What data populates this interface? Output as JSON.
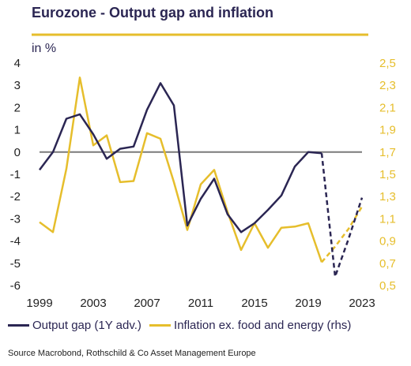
{
  "chart_data": {
    "type": "line",
    "title": "Eurozone - Output gap and inflation",
    "ylabel": "in %",
    "x": [
      1999,
      2000,
      2001,
      2002,
      2003,
      2004,
      2005,
      2006,
      2007,
      2008,
      2009,
      2010,
      2011,
      2012,
      2013,
      2014,
      2015,
      2016,
      2017,
      2018,
      2019,
      2020,
      2021,
      2022,
      2023
    ],
    "x_ticks": [
      1999,
      2003,
      2007,
      2011,
      2015,
      2019,
      2023
    ],
    "ylim": [
      -6,
      4
    ],
    "y_ticks": [
      4,
      3,
      2,
      1,
      0,
      -1,
      -2,
      -3,
      -4,
      -5,
      -6
    ],
    "y2lim": [
      0.5,
      2.5
    ],
    "y2_ticks": [
      "2,5",
      "2,3",
      "2,1",
      "1,9",
      "1,7",
      "1,5",
      "1,3",
      "1,1",
      "0,9",
      "0,7",
      "0,5"
    ],
    "series": [
      {
        "name": "Output gap (1Y adv.)",
        "color": "#2b2653",
        "axis": "left",
        "values": [
          -0.8,
          0.0,
          1.5,
          1.7,
          0.8,
          -0.3,
          0.15,
          0.25,
          1.9,
          3.1,
          2.1,
          -3.3,
          -2.1,
          -1.2,
          -2.8,
          -3.6,
          -3.2,
          -2.6,
          -1.95,
          -0.65,
          0.0,
          -0.05,
          -5.6,
          -3.9,
          -2.05
        ],
        "dashed_from": 2020
      },
      {
        "name": "Inflation ex. food and energy (rhs)",
        "color": "#e6be2c",
        "axis": "right",
        "values": [
          1.07,
          0.98,
          1.55,
          2.37,
          1.76,
          1.85,
          1.43,
          1.44,
          1.87,
          1.82,
          1.43,
          1.0,
          1.41,
          1.54,
          1.16,
          0.82,
          1.06,
          0.84,
          1.02,
          1.03,
          1.06,
          0.71,
          0.85,
          1.01,
          1.21
        ],
        "dashed_from": 2020
      }
    ],
    "legend_position": "bottom",
    "zero_line": true
  },
  "labels": {
    "unit": "in %",
    "source": "Source Macrobond, Rothschild  & Co Asset Management Europe"
  }
}
